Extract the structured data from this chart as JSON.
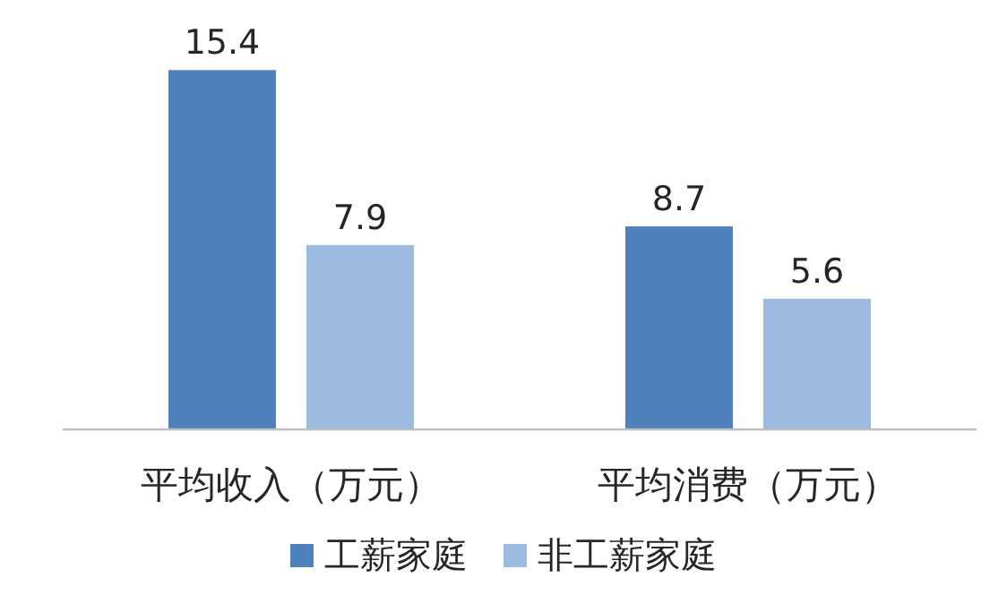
{
  "chart_data": {
    "type": "bar",
    "categories": [
      "平均收入（万元）",
      "平均消费（万元）"
    ],
    "series": [
      {
        "name": "工薪家庭",
        "color": "#4f81bd",
        "values": [
          15.4,
          8.7
        ]
      },
      {
        "name": "非工薪家庭",
        "color": "#9dbbe0",
        "values": [
          7.9,
          5.6
        ]
      }
    ],
    "data_labels": true,
    "legend": "bottom"
  }
}
